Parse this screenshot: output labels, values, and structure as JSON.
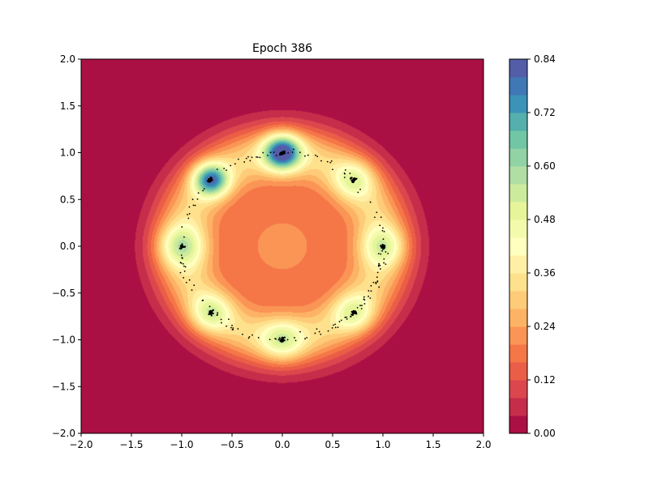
{
  "chart_data": {
    "type": "contourf",
    "title": "Epoch 386",
    "xlabel": "",
    "ylabel": "",
    "xlim": [
      -2.0,
      2.0
    ],
    "ylim": [
      -2.0,
      2.0
    ],
    "x_ticks": [
      -2.0,
      -1.5,
      -1.0,
      -0.5,
      0.0,
      0.5,
      1.0,
      1.5,
      2.0
    ],
    "x_tick_labels": [
      "−2.0",
      "−1.5",
      "−1.0",
      "−0.5",
      "0.0",
      "0.5",
      "1.0",
      "1.5",
      "2.0"
    ],
    "y_ticks": [
      -2.0,
      -1.5,
      -1.0,
      -0.5,
      0.0,
      0.5,
      1.0,
      1.5,
      2.0
    ],
    "y_tick_labels": [
      "−2.0",
      "−1.5",
      "−1.0",
      "−0.5",
      "0.0",
      "0.5",
      "1.0",
      "1.5",
      "2.0"
    ],
    "colormap": "Spectral",
    "colorbar": {
      "min": 0.0,
      "max": 0.84,
      "levels": 21,
      "ticks": [
        0.0,
        0.12,
        0.24,
        0.36,
        0.48,
        0.6,
        0.72,
        0.84
      ],
      "tick_labels": [
        "0.00",
        "0.12",
        "0.24",
        "0.36",
        "0.48",
        "0.60",
        "0.72",
        "0.84"
      ]
    },
    "density_components": [
      {
        "center": [
          0.0,
          0.0
        ],
        "sigma": 0.55,
        "weight": 0.22
      },
      {
        "center": [
          0.0,
          1.0
        ],
        "sigma": 0.13,
        "weight": 0.6
      },
      {
        "center": [
          -0.71,
          0.71
        ],
        "sigma": 0.12,
        "weight": 0.5
      },
      {
        "center": [
          0.71,
          0.71
        ],
        "sigma": 0.14,
        "weight": 0.2
      },
      {
        "center": [
          1.0,
          0.0
        ],
        "sigma": 0.15,
        "weight": 0.22
      },
      {
        "center": [
          0.71,
          -0.71
        ],
        "sigma": 0.14,
        "weight": 0.2
      },
      {
        "center": [
          0.0,
          -1.0
        ],
        "sigma": 0.15,
        "weight": 0.22
      },
      {
        "center": [
          -0.71,
          -0.71
        ],
        "sigma": 0.14,
        "weight": 0.22
      },
      {
        "center": [
          -1.0,
          0.0
        ],
        "sigma": 0.16,
        "weight": 0.26
      }
    ],
    "ring": {
      "radius": 1.0,
      "width": 0.22,
      "weight": 0.28
    },
    "samples": {
      "description": "black scatter points clustered on a unit ring",
      "cluster_centers": [
        [
          0.0,
          1.0
        ],
        [
          -0.71,
          0.71
        ],
        [
          -1.0,
          0.0
        ],
        [
          -0.71,
          -0.71
        ],
        [
          0.0,
          -1.0
        ],
        [
          0.71,
          -0.71
        ],
        [
          1.0,
          0.0
        ],
        [
          0.71,
          0.71
        ]
      ],
      "color": "#000000"
    }
  }
}
